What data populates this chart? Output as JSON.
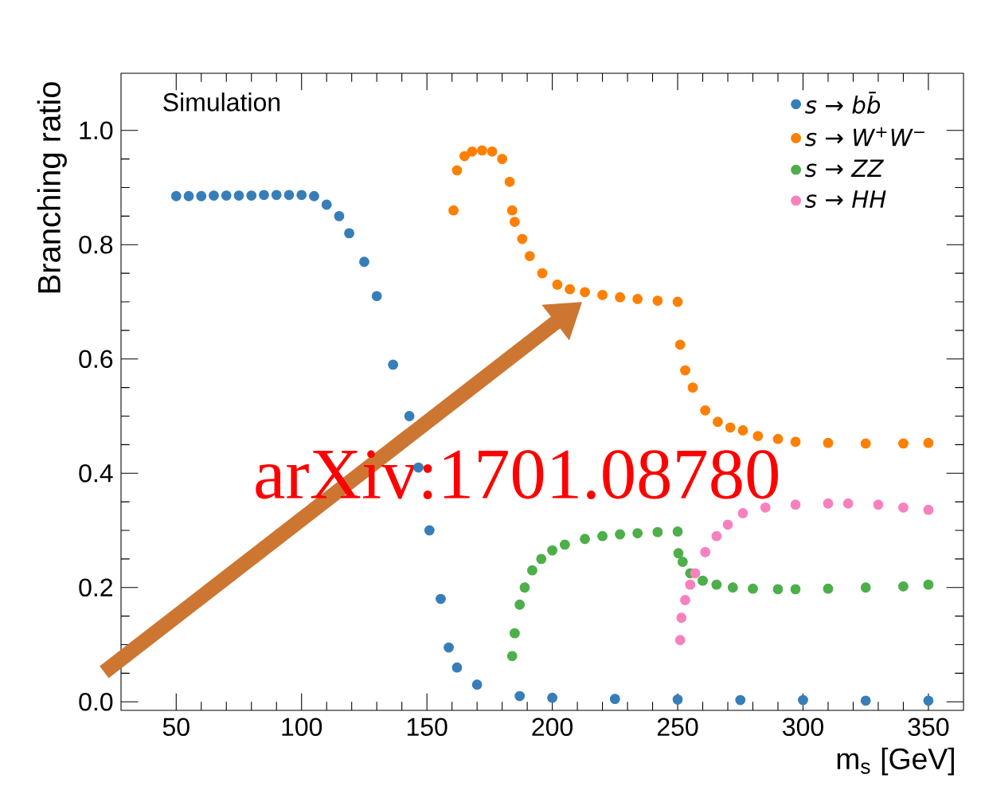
{
  "chart_data": {
    "type": "scatter",
    "xlabel": "m$_{s}$ [GeV]",
    "ylabel": "Branching ratio",
    "annotations": [
      "Simulation",
      "arXiv:1701.08780"
    ],
    "xlim": [
      28,
      364
    ],
    "ylim": [
      -0.015,
      1.1
    ],
    "xticks": [
      50,
      100,
      150,
      200,
      250,
      300,
      350
    ],
    "yticks": [
      {
        "value": 0,
        "label": "0.0"
      },
      0.2,
      0.4,
      0.6,
      0.8,
      {
        "value": 1,
        "label": "1.0"
      }
    ],
    "legend": "top right",
    "grid": false,
    "series": [
      {
        "name": "s → bb̄",
        "color": "#377eb8",
        "x": [
          50,
          55,
          60,
          65,
          70,
          75,
          80,
          85,
          90,
          95,
          100,
          105,
          110,
          115,
          119,
          125,
          130,
          136.5,
          143,
          146.6,
          151,
          155.5,
          158.7,
          162,
          170,
          187,
          200,
          225,
          250,
          275,
          300,
          325,
          350
        ],
        "values": [
          0.885,
          0.885,
          0.885,
          0.886,
          0.886,
          0.886,
          0.886,
          0.887,
          0.887,
          0.887,
          0.887,
          0.885,
          0.87,
          0.85,
          0.82,
          0.77,
          0.71,
          0.59,
          0.5,
          0.41,
          0.3,
          0.18,
          0.095,
          0.06,
          0.03,
          0.01,
          0.007,
          0.005,
          0.004,
          0.003,
          0.003,
          0.002,
          0.002
        ]
      },
      {
        "name": "s → W$^{+}$W$^{−}$",
        "color": "#ff7f00",
        "x": [
          160.6,
          162,
          165,
          168,
          172,
          176,
          180,
          183,
          184,
          185,
          188,
          191,
          196,
          202,
          207,
          213,
          220,
          227,
          234,
          242,
          250,
          251,
          253,
          256,
          261,
          266,
          271,
          276,
          282,
          290,
          297,
          310,
          325,
          340,
          350
        ],
        "values": [
          0.86,
          0.93,
          0.955,
          0.963,
          0.965,
          0.963,
          0.95,
          0.91,
          0.86,
          0.84,
          0.81,
          0.78,
          0.75,
          0.73,
          0.722,
          0.717,
          0.712,
          0.708,
          0.705,
          0.702,
          0.7,
          0.625,
          0.58,
          0.55,
          0.51,
          0.49,
          0.48,
          0.475,
          0.465,
          0.46,
          0.455,
          0.453,
          0.452,
          0.452,
          0.453
        ]
      },
      {
        "name": "s → ZZ",
        "color": "#4daf4a",
        "x": [
          184,
          185,
          187,
          189,
          192,
          195.6,
          200,
          205,
          213,
          220,
          227,
          234,
          242,
          250,
          250.3,
          252,
          255,
          260,
          265.5,
          272,
          280,
          290,
          297,
          310,
          325,
          340,
          350
        ],
        "values": [
          0.08,
          0.12,
          0.17,
          0.2,
          0.23,
          0.25,
          0.265,
          0.275,
          0.285,
          0.29,
          0.293,
          0.295,
          0.297,
          0.298,
          0.26,
          0.245,
          0.225,
          0.212,
          0.205,
          0.2,
          0.198,
          0.197,
          0.197,
          0.198,
          0.2,
          0.202,
          0.205
        ]
      },
      {
        "name": "s → HH",
        "color": "#f781bf",
        "x": [
          251,
          251.5,
          253,
          255,
          257,
          261,
          265.5,
          270,
          276,
          285,
          297,
          310,
          318,
          330,
          340,
          350
        ],
        "values": [
          0.108,
          0.147,
          0.178,
          0.205,
          0.225,
          0.262,
          0.29,
          0.31,
          0.33,
          0.34,
          0.345,
          0.347,
          0.347,
          0.345,
          0.34,
          0.336
        ]
      }
    ]
  }
}
